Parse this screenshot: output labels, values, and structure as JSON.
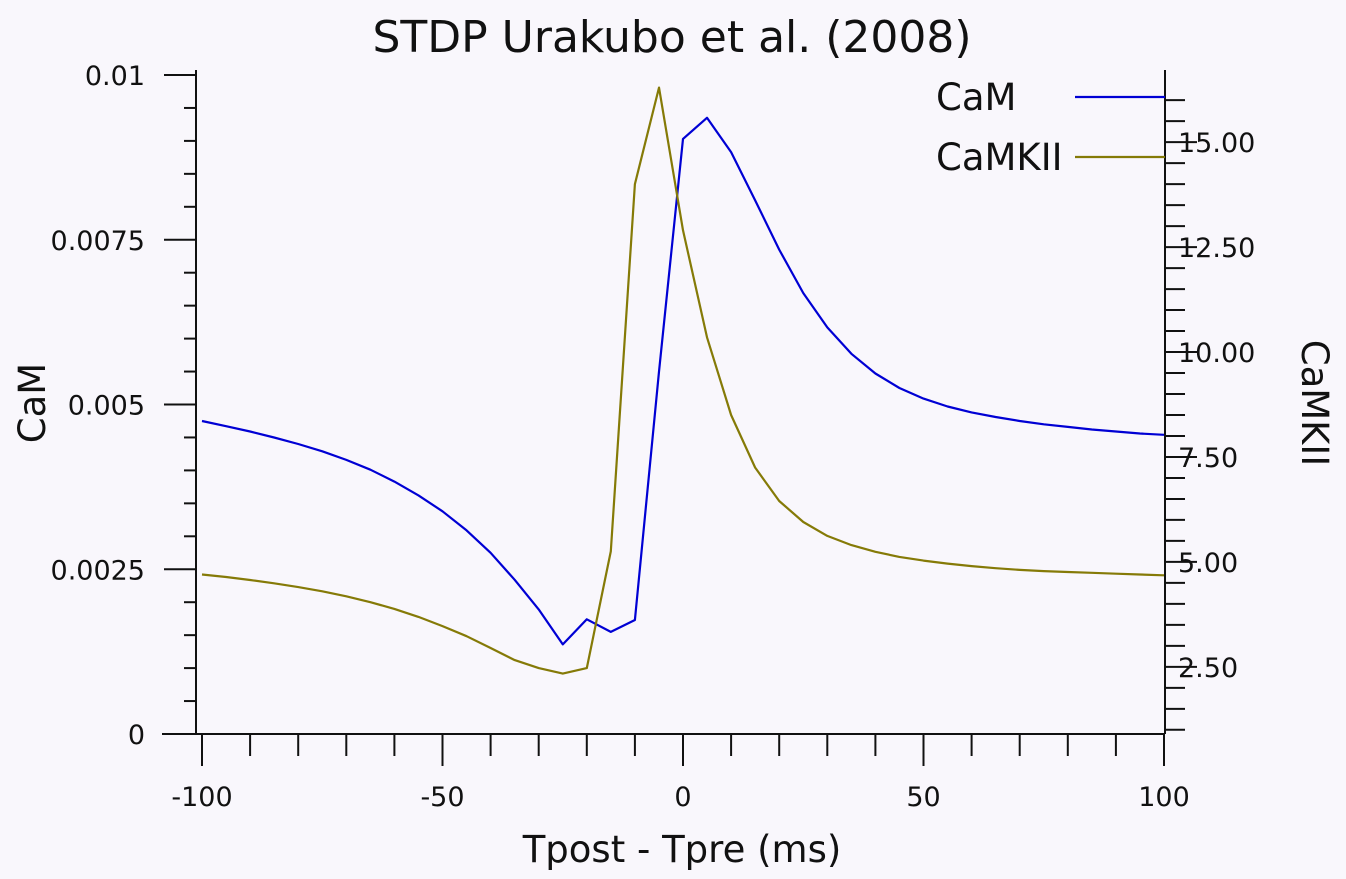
{
  "chart_data": {
    "type": "line",
    "title": "STDP Urakubo et al. (2008)",
    "xlabel": "Tpost - Tpre (ms)",
    "ylabel_left": "CaM",
    "ylabel_right": "CaMKII",
    "xlim": [
      -100,
      100
    ],
    "ylim_left": [
      0,
      0.01
    ],
    "ylim_right": [
      0.9,
      16.6
    ],
    "x_ticks": [
      -100,
      -50,
      0,
      50,
      100
    ],
    "x_tick_labels": [
      "-100",
      "-50",
      "0",
      "50",
      "100"
    ],
    "y_left_ticks": [
      0,
      0.0025,
      0.005,
      0.0075,
      0.01
    ],
    "y_left_tick_labels": [
      "0",
      "0.0025",
      "0.005",
      "0.0075",
      "0.01"
    ],
    "y_right_ticks": [
      2.5,
      5,
      7.5,
      10,
      12.5,
      15
    ],
    "y_right_tick_labels": [
      "2.50",
      "5.00",
      "7.50",
      "10.00",
      "12.50",
      "15.00"
    ],
    "x": [
      -100,
      -95,
      -90,
      -85,
      -80,
      -75,
      -70,
      -65,
      -60,
      -55,
      -50,
      -45,
      -40,
      -35,
      -30,
      -25,
      -20,
      -15,
      -10,
      -5,
      0,
      5,
      10,
      15,
      20,
      25,
      30,
      35,
      40,
      45,
      50,
      55,
      60,
      65,
      70,
      75,
      80,
      85,
      90,
      95,
      100
    ],
    "legend_position": "top-right",
    "series": [
      {
        "name": "CaM",
        "axis": "left",
        "color": "#0000d4",
        "values": [
          0.00475,
          0.00467,
          0.00459,
          0.0045,
          0.0044,
          0.00429,
          0.00416,
          0.00401,
          0.00383,
          0.00362,
          0.00338,
          0.00309,
          0.00275,
          0.00234,
          0.00189,
          0.00136,
          0.00174,
          0.00155,
          0.00173,
          0.0055,
          0.00903,
          0.00935,
          0.00883,
          0.0081,
          0.00735,
          0.00669,
          0.00617,
          0.00577,
          0.00547,
          0.00525,
          0.00509,
          0.00497,
          0.00488,
          0.00481,
          0.00475,
          0.0047,
          0.00466,
          0.00462,
          0.00459,
          0.00456,
          0.00454
        ]
      },
      {
        "name": "CaMKII",
        "axis": "right",
        "color": "#857a07",
        "values": [
          4.7,
          4.64,
          4.57,
          4.49,
          4.4,
          4.3,
          4.18,
          4.04,
          3.88,
          3.69,
          3.47,
          3.23,
          2.95,
          2.66,
          2.47,
          2.34,
          2.47,
          5.25,
          14.0,
          16.3,
          12.9,
          10.35,
          8.5,
          7.25,
          6.45,
          5.95,
          5.62,
          5.4,
          5.24,
          5.12,
          5.03,
          4.96,
          4.9,
          4.85,
          4.81,
          4.78,
          4.76,
          4.74,
          4.72,
          4.7,
          4.68
        ]
      }
    ]
  }
}
